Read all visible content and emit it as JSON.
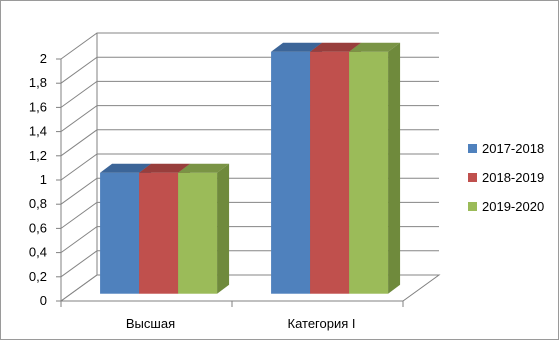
{
  "chart_data": {
    "type": "bar",
    "style": "3d-clustered-column",
    "categories": [
      "Высшая",
      "Категория I"
    ],
    "series": [
      {
        "name": "2017-2018",
        "values": [
          1,
          2
        ],
        "color": "#4f81bd",
        "top": "#3c6598",
        "side": "#2f5b8f"
      },
      {
        "name": "2018-2019",
        "values": [
          1,
          2
        ],
        "color": "#c0504d",
        "top": "#983e3c",
        "side": "#8c3735"
      },
      {
        "name": "2019-2020",
        "values": [
          1,
          2
        ],
        "color": "#9bbb59",
        "top": "#7a9445",
        "side": "#6f8a3c"
      }
    ],
    "ylim": [
      0,
      2
    ],
    "yticks": [
      "0",
      "0,2",
      "0,4",
      "0,6",
      "0,8",
      "1",
      "1,2",
      "1,4",
      "1,6",
      "1,8",
      "2"
    ],
    "grid": true,
    "legend_position": "right",
    "title": "",
    "xlabel": "",
    "ylabel": ""
  }
}
